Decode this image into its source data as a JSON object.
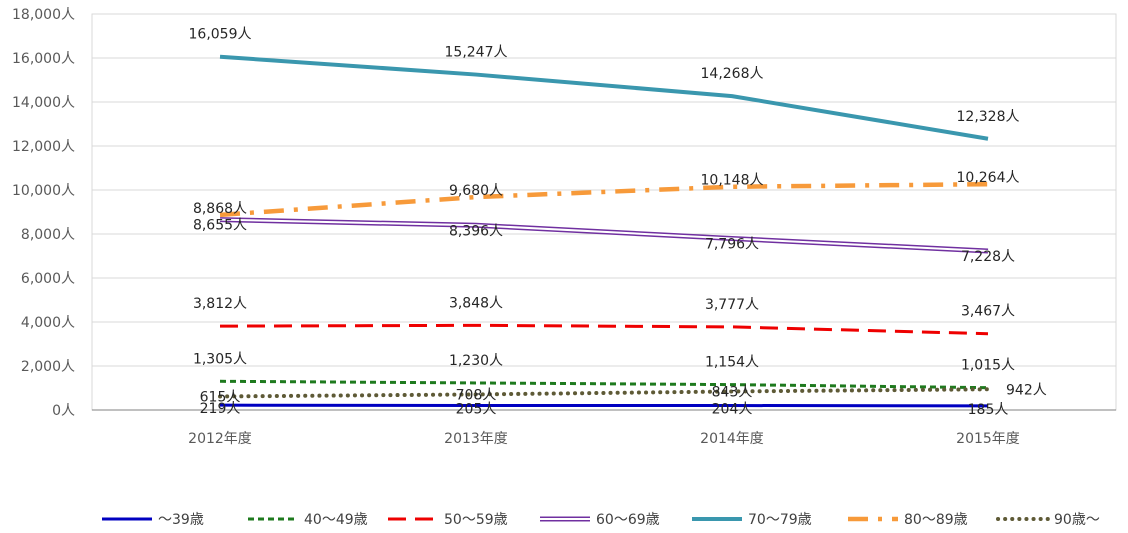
{
  "chart_data": {
    "type": "line",
    "categories": [
      "2012年度",
      "2013年度",
      "2014年度",
      "2015年度"
    ],
    "ylim": [
      0,
      18000
    ],
    "yticks": [
      0,
      2000,
      4000,
      6000,
      8000,
      10000,
      12000,
      14000,
      16000,
      18000
    ],
    "ytick_labels": [
      "0人",
      "2,000人",
      "4,000人",
      "6,000人",
      "8,000人",
      "10,000人",
      "12,000人",
      "14,000人",
      "16,000人",
      "18,000人"
    ],
    "grid": "horizontal",
    "legend_position": "bottom",
    "series": [
      {
        "name": "～39歳",
        "values": [
          219,
          205,
          204,
          185
        ],
        "labels": [
          "219人",
          "205人",
          "204人",
          "185人"
        ],
        "color": "#0000c0",
        "style": "solid"
      },
      {
        "name": "40～49歳",
        "values": [
          1305,
          1230,
          1154,
          1015
        ],
        "labels": [
          "1,305人",
          "1,230人",
          "1,154人",
          "1,015人"
        ],
        "color": "#1e7a1e",
        "style": "dash"
      },
      {
        "name": "50～59歳",
        "values": [
          3812,
          3848,
          3777,
          3467
        ],
        "labels": [
          "3,812人",
          "3,848人",
          "3,777人",
          "3,467人"
        ],
        "color": "#ee0000",
        "style": "longdash"
      },
      {
        "name": "60～69歳",
        "values": [
          8655,
          8396,
          7796,
          7228
        ],
        "labels": [
          "8,655人",
          "8,396人",
          "7,796人",
          "7,228人"
        ],
        "color": "#7030a0",
        "style": "double"
      },
      {
        "name": "70～79歳",
        "values": [
          16059,
          15247,
          14268,
          12328
        ],
        "labels": [
          "16,059人",
          "15,247人",
          "14,268人",
          "12,328人"
        ],
        "color": "#3a97ae",
        "style": "thick"
      },
      {
        "name": "80～89歳",
        "values": [
          8868,
          9680,
          10148,
          10264
        ],
        "labels": [
          "8,868人",
          "9,680人",
          "10,148人",
          "10,264人"
        ],
        "color": "#f79a3a",
        "style": "dashdot"
      },
      {
        "name": "90歳～",
        "values": [
          615,
          708,
          843,
          942
        ],
        "labels": [
          "615人",
          "708人",
          "843人",
          "942人"
        ],
        "color": "#5e5a36",
        "style": "dot"
      }
    ]
  }
}
